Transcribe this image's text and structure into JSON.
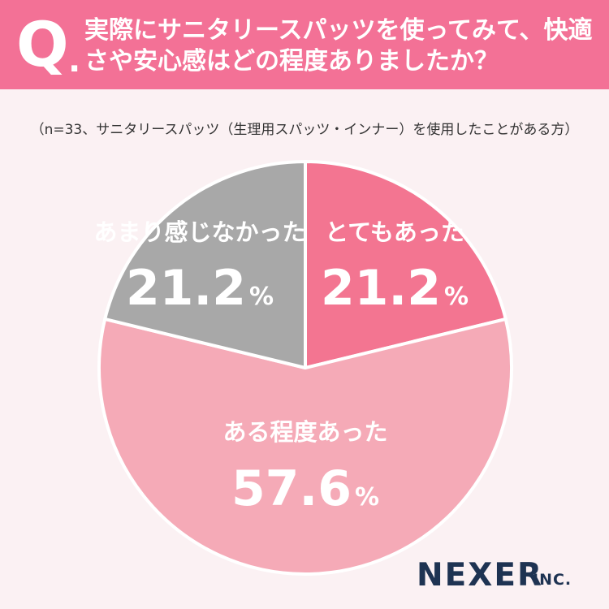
{
  "question": {
    "mark": "Q",
    "dot": ".",
    "text": "実際にサニタリースパッツを使ってみて、快適さや安心感はどの程度ありましたか？"
  },
  "subtitle": "（n=33、サニタリースパッツ（生理用スパッツ・インナー）を使用したことがある方）",
  "chart_data": {
    "type": "pie",
    "slices": [
      {
        "label": "とてもあった",
        "value": 21.2,
        "value_text": "21.2",
        "unit": "%",
        "color": "#f37591",
        "text_color": "#ffffff"
      },
      {
        "label": "ある程度あった",
        "value": 57.6,
        "value_text": "57.6",
        "unit": "%",
        "color": "#f5aab7",
        "text_color": "#ffffff"
      },
      {
        "label": "あまり感じなかった",
        "value": 21.2,
        "value_text": "21.2",
        "unit": "%",
        "color": "#a8a8a8",
        "text_color": "#ffffff"
      }
    ],
    "start": "top",
    "direction": "clockwise"
  },
  "logo": {
    "name": "NEXER",
    "suffix": "INC."
  },
  "colors": {
    "header": "#f37196",
    "background": "#fbf1f3",
    "logo": "#1e3352"
  }
}
